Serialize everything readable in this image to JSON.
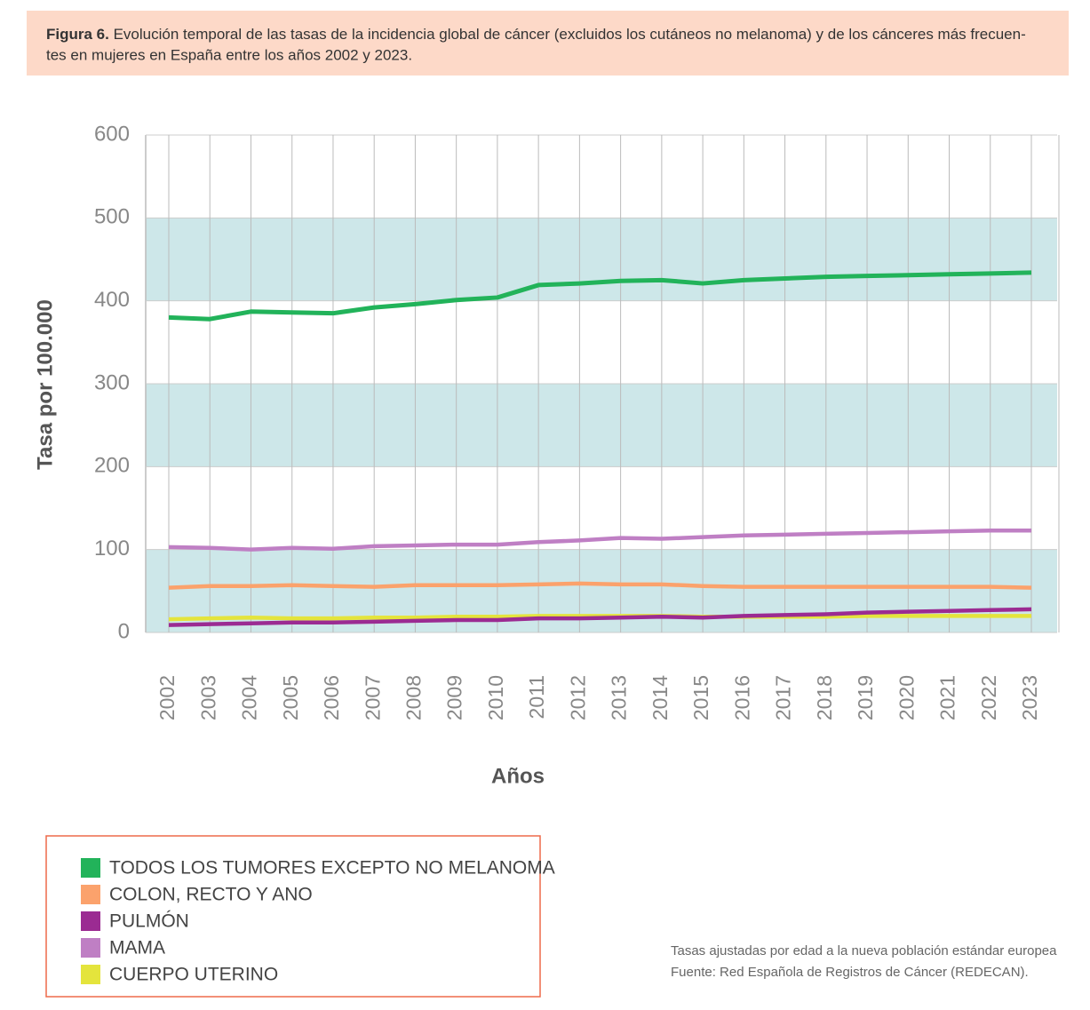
{
  "header": {
    "label": "Figura 6.",
    "text": "Evolución temporal de las tasas de la incidencia global de cáncer (excluidos los cutáneos no melanoma) y de los cánceres más frecuen-",
    "text_2": "tes en mujeres en España entre los años 2002 y 2023."
  },
  "chart_data": {
    "type": "line",
    "y_label": "Tasa por 100.000",
    "x_label": "Años",
    "categories": [
      "2002",
      "2003",
      "2004",
      "2005",
      "2006",
      "2007",
      "2008",
      "2009",
      "2010",
      "2011",
      "2012",
      "2013",
      "2014",
      "2015",
      "2016",
      "2017",
      "2018",
      "2019",
      "2020",
      "2021",
      "2022",
      "2023"
    ],
    "ylim": [
      0,
      600
    ],
    "yticks": [
      0,
      100,
      200,
      300,
      400,
      500,
      600
    ],
    "grid": true,
    "bands": true,
    "series": [
      {
        "name": "TODOS LOS TUMORES EXCEPTO NO MELANOMA",
        "color": "#22b35a",
        "values": [
          380,
          378,
          387,
          386,
          385,
          392,
          396,
          401,
          404,
          419,
          421,
          424,
          425,
          421,
          425,
          427,
          429,
          430,
          431,
          432,
          433,
          434
        ]
      },
      {
        "name": "COLON, RECTO Y ANO",
        "color": "#fba26c",
        "values": [
          54,
          56,
          56,
          57,
          56,
          55,
          57,
          57,
          57,
          58,
          59,
          58,
          58,
          56,
          55,
          55,
          55,
          55,
          55,
          55,
          55,
          54
        ]
      },
      {
        "name": "PULMÓN",
        "color": "#9b2b92",
        "values": [
          9,
          10,
          11,
          12,
          12,
          13,
          14,
          15,
          15,
          17,
          17,
          18,
          19,
          18,
          20,
          21,
          22,
          24,
          25,
          26,
          27,
          28
        ]
      },
      {
        "name": "MAMA",
        "color": "#bf7fc4",
        "values": [
          103,
          102,
          100,
          102,
          101,
          104,
          105,
          106,
          106,
          109,
          111,
          114,
          113,
          115,
          117,
          118,
          119,
          120,
          121,
          122,
          123,
          123
        ]
      },
      {
        "name": "CUERPO UTERINO",
        "color": "#e4e43c",
        "values": [
          16,
          17,
          18,
          17,
          17,
          18,
          18,
          19,
          19,
          20,
          20,
          20,
          20,
          19,
          19,
          19,
          19,
          20,
          20,
          20,
          20,
          20
        ]
      }
    ]
  },
  "notes": [
    "Tasas ajustadas por edad a la nueva población estándar europea",
    "Fuente: Red Española de Registros de Cáncer (REDECAN)."
  ]
}
